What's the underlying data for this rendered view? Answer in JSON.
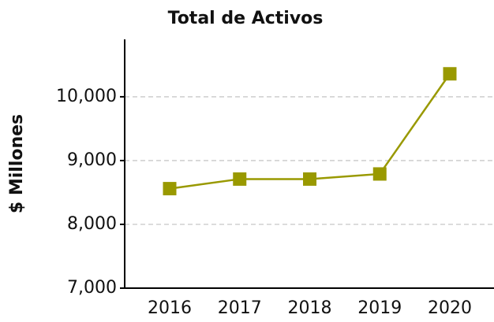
{
  "chart_data": {
    "type": "line",
    "title": "Total de Activos",
    "y_label": "$ Millones",
    "categories": [
      "2016",
      "2017",
      "2018",
      "2019",
      "2020"
    ],
    "series": [
      {
        "name": "Total de Activos",
        "color": "#999900",
        "values": [
          8560,
          8710,
          8710,
          8790,
          10360
        ]
      }
    ],
    "ylim": [
      7000,
      10900
    ],
    "yticks": [
      {
        "value": 7000,
        "label": "7,000"
      },
      {
        "value": 8000,
        "label": "8,000"
      },
      {
        "value": 9000,
        "label": "9,000"
      },
      {
        "value": 10000,
        "label": "10,000"
      }
    ],
    "grid": true
  }
}
